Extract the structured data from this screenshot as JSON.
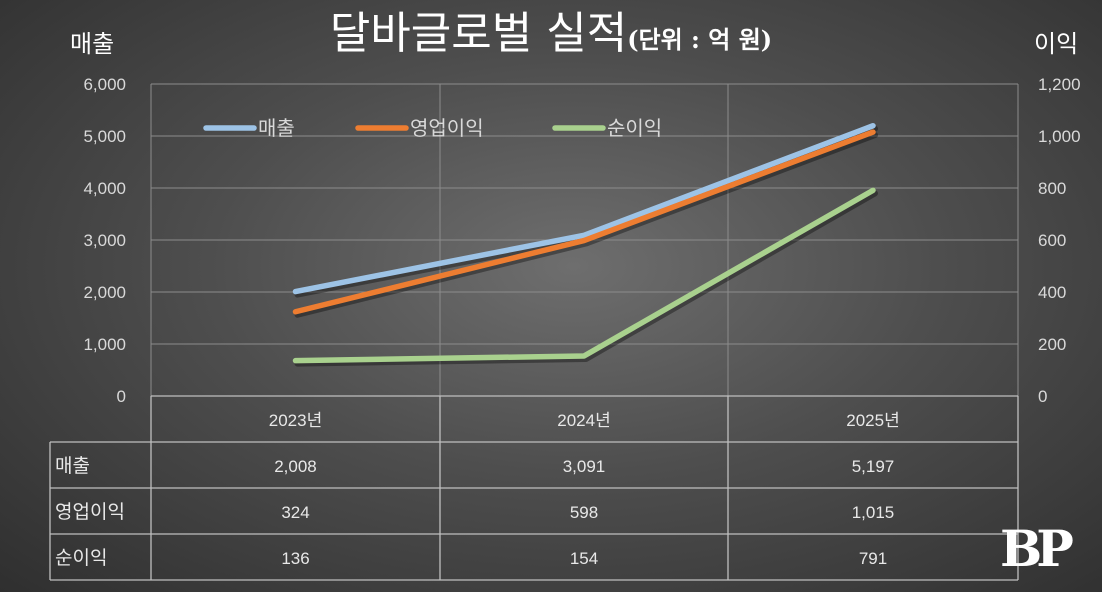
{
  "title": {
    "main": "달바글로벌 실적",
    "sub": "(단위 : 억 원)"
  },
  "left_axis_title": "매출",
  "right_axis_title": "이익",
  "logo_text": "BP",
  "chart_data": {
    "type": "line",
    "categories": [
      "2023년",
      "2024년",
      "2025년"
    ],
    "left_axis": {
      "ylim": [
        0,
        6000
      ],
      "ticks": [
        "0",
        "1,000",
        "2,000",
        "3,000",
        "4,000",
        "5,000",
        "6,000"
      ]
    },
    "right_axis": {
      "ylim": [
        0,
        1200
      ],
      "ticks": [
        "0",
        "200",
        "400",
        "600",
        "800",
        "1,000",
        "1,200"
      ]
    },
    "grid": true,
    "legend_position": "top-left",
    "series": [
      {
        "name": "매출",
        "axis": "left",
        "color": "#9dc3e6",
        "values": [
          2008,
          3091,
          5197
        ]
      },
      {
        "name": "영업이익",
        "axis": "right",
        "color": "#ed7d31",
        "values": [
          324,
          598,
          1015
        ]
      },
      {
        "name": "순이익",
        "axis": "right",
        "color": "#a9d18e",
        "values": [
          136,
          154,
          791
        ]
      }
    ],
    "table": {
      "rows": [
        {
          "label": "매출",
          "cells": [
            "2,008",
            "3,091",
            "5,197"
          ]
        },
        {
          "label": "영업이익",
          "cells": [
            "324",
            "598",
            "1,015"
          ]
        },
        {
          "label": "순이익",
          "cells": [
            "136",
            "154",
            "791"
          ]
        }
      ]
    }
  }
}
